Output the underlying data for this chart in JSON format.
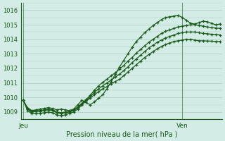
{
  "title": "Pression niveau de la mer( hPa )",
  "bg_color": "#d4ece6",
  "grid_color": "#aaccc4",
  "line_color": "#1a5c1a",
  "ylim": [
    1008.5,
    1016.5
  ],
  "yticks": [
    1009,
    1010,
    1011,
    1012,
    1013,
    1014,
    1015,
    1016
  ],
  "xtick_labels": [
    "Jeu",
    "Ven"
  ],
  "xtick_pos_jeu": 0,
  "xtick_pos_ven": 38,
  "n_points": 48,
  "x": [
    0,
    1,
    2,
    3,
    4,
    5,
    6,
    7,
    8,
    9,
    10,
    11,
    12,
    13,
    14,
    15,
    16,
    17,
    18,
    19,
    20,
    21,
    22,
    23,
    24,
    25,
    26,
    27,
    28,
    29,
    30,
    31,
    32,
    33,
    34,
    35,
    36,
    37,
    38,
    39,
    40,
    41,
    42,
    43,
    44,
    45,
    46,
    47
  ],
  "line1_y": [
    1009.8,
    1009.3,
    1009.1,
    1009.15,
    1009.2,
    1009.25,
    1009.3,
    1009.25,
    1009.15,
    1009.2,
    1009.15,
    1009.1,
    1009.2,
    1009.5,
    1009.8,
    1009.65,
    1009.5,
    1009.7,
    1009.95,
    1010.2,
    1010.6,
    1011.1,
    1011.6,
    1012.1,
    1012.55,
    1013.0,
    1013.45,
    1013.85,
    1014.15,
    1014.45,
    1014.7,
    1014.95,
    1015.15,
    1015.35,
    1015.5,
    1015.55,
    1015.6,
    1015.65,
    1015.5,
    1015.3,
    1015.1,
    1015.05,
    1015.15,
    1015.25,
    1015.2,
    1015.1,
    1015.0,
    1015.05
  ],
  "line2_y": [
    1009.8,
    1009.25,
    1009.05,
    1009.1,
    1009.1,
    1009.15,
    1009.2,
    1009.15,
    1009.0,
    1008.95,
    1009.0,
    1009.05,
    1009.15,
    1009.35,
    1009.6,
    1009.85,
    1010.15,
    1010.5,
    1010.8,
    1011.05,
    1011.25,
    1011.5,
    1011.7,
    1011.95,
    1012.2,
    1012.5,
    1012.75,
    1013.05,
    1013.3,
    1013.55,
    1013.8,
    1014.0,
    1014.2,
    1014.4,
    1014.55,
    1014.65,
    1014.75,
    1014.85,
    1014.9,
    1014.95,
    1015.0,
    1015.0,
    1014.95,
    1014.9,
    1014.85,
    1014.8,
    1014.78,
    1014.75
  ],
  "line3_y": [
    1009.8,
    1009.2,
    1009.0,
    1009.05,
    1009.05,
    1009.1,
    1009.15,
    1009.1,
    1008.95,
    1008.9,
    1008.95,
    1009.0,
    1009.1,
    1009.3,
    1009.55,
    1009.8,
    1010.05,
    1010.35,
    1010.6,
    1010.8,
    1011.0,
    1011.2,
    1011.4,
    1011.6,
    1011.85,
    1012.1,
    1012.4,
    1012.65,
    1012.9,
    1013.15,
    1013.4,
    1013.6,
    1013.8,
    1013.95,
    1014.1,
    1014.2,
    1014.3,
    1014.4,
    1014.45,
    1014.5,
    1014.5,
    1014.5,
    1014.45,
    1014.4,
    1014.38,
    1014.35,
    1014.33,
    1014.3
  ],
  "line4_y": [
    1009.8,
    1009.1,
    1008.9,
    1008.9,
    1008.9,
    1008.95,
    1009.0,
    1008.95,
    1008.8,
    1008.75,
    1008.8,
    1008.9,
    1009.0,
    1009.2,
    1009.5,
    1009.75,
    1009.95,
    1010.2,
    1010.4,
    1010.6,
    1010.75,
    1010.95,
    1011.1,
    1011.25,
    1011.5,
    1011.75,
    1012.0,
    1012.25,
    1012.5,
    1012.75,
    1012.95,
    1013.15,
    1013.35,
    1013.5,
    1013.65,
    1013.75,
    1013.85,
    1013.9,
    1013.95,
    1014.0,
    1014.0,
    1013.95,
    1013.9,
    1013.9,
    1013.88,
    1013.87,
    1013.85,
    1013.85
  ]
}
